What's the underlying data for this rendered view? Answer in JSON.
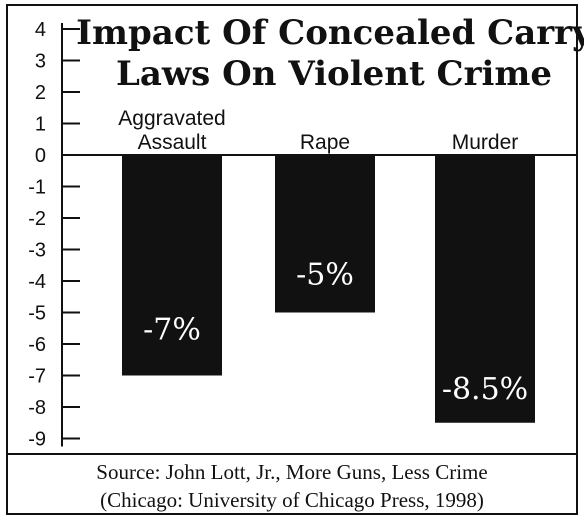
{
  "chart_data": {
    "type": "bar",
    "title_lines": [
      "Impact Of Concealed Carry",
      "Laws On Violent Crime"
    ],
    "categories": [
      {
        "lines": [
          "Aggravated",
          "Assault"
        ]
      },
      {
        "lines": [
          "Rape"
        ]
      },
      {
        "lines": [
          "Murder"
        ]
      }
    ],
    "values": [
      -7,
      -5,
      -8.5
    ],
    "data_labels": [
      "-7%",
      "-5%",
      "-8.5%"
    ],
    "ylim": [
      -9,
      4
    ],
    "yticks": [
      4,
      3,
      2,
      1,
      0,
      -1,
      -2,
      -3,
      -4,
      -5,
      -6,
      -7,
      -8,
      -9
    ],
    "ytick_labels": [
      "4",
      "3",
      "2",
      "1",
      "0",
      "-1",
      "-2",
      "-3",
      "-4",
      "-5",
      "-6",
      "-7",
      "-8",
      "-9"
    ],
    "bar_color": "#111111",
    "grid": false,
    "legend": "none"
  },
  "source": {
    "line1": "Source:   John Lott, Jr., More Guns, Less Crime",
    "line2": "(Chicago: University of Chicago Press, 1998)"
  }
}
